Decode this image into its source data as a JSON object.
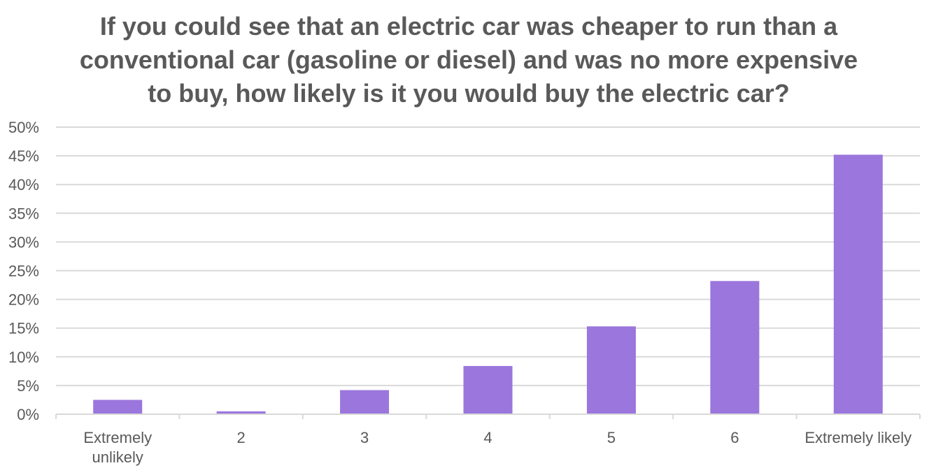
{
  "chart_data": {
    "type": "bar",
    "title": "If you could see that an electric car was cheaper to run than a\nconventional car (gasoline or diesel) and was no more expensive\nto buy, how likely is it you would buy the electric car?",
    "categories": [
      "Extremely\nunlikely",
      "2",
      "3",
      "4",
      "5",
      "6",
      "Extremely likely"
    ],
    "values": [
      2.5,
      0.5,
      4.2,
      8.4,
      15.3,
      23.2,
      45.2
    ],
    "ylim": [
      0,
      50
    ],
    "yticks": [
      0,
      5,
      10,
      15,
      20,
      25,
      30,
      35,
      40,
      45,
      50
    ],
    "ytick_labels": [
      "0%",
      "5%",
      "10%",
      "15%",
      "20%",
      "25%",
      "30%",
      "35%",
      "40%",
      "45%",
      "50%"
    ],
    "xlabel": "",
    "ylabel": "",
    "grid": true,
    "legend": false,
    "bar_color": "#9B76DD",
    "grid_color": "#D9D9D9",
    "text_color": "#595959"
  }
}
